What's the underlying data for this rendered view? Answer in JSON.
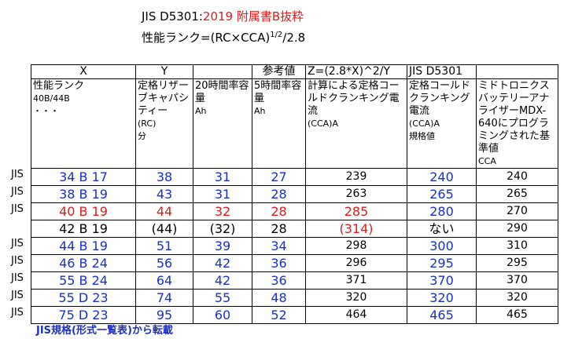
{
  "title": {
    "line1_prefix": "JIS D5301:",
    "line1_red": "2019 附属書B抜粋",
    "line2_prefix": "性能ランク=(RC×CCA)",
    "line2_sup": "1/2",
    "line2_suffix": "/2.8"
  },
  "headers": [
    "X",
    "Y",
    "",
    "参考値",
    "Z=(2.8*X)^2/Y",
    "JIS D5301",
    ""
  ],
  "descriptions": [
    {
      "main": "性能ランク",
      "sub": "40B/44B",
      "extra": "・・・"
    },
    {
      "main": "定格リザーブキャパシティー",
      "sub": "(RC)",
      "extra": "分"
    },
    {
      "main": "20時間率容量",
      "sub": "",
      "extra": "Ah"
    },
    {
      "main": "5時間率容量",
      "sub": "",
      "extra": "Ah"
    },
    {
      "main": "計算による定格コールドクランキング電流",
      "sub": "(CCA)A",
      "extra": ""
    },
    {
      "main": "定格コールドクランキング電流",
      "sub": "(CCA)A",
      "extra": "規格値"
    },
    {
      "main": "ミドトロニクスバッテリーアナライザーMDX-640にプログラミングされた基準値",
      "sub": "",
      "extra": "CCA"
    }
  ],
  "rows": [
    {
      "side": "JIS",
      "rank": "34 B 17",
      "rc": "38",
      "ah20": "31",
      "ah5": "27",
      "calc": "239",
      "jis": "240",
      "midtronics": "240",
      "style": "blue"
    },
    {
      "side": "JIS",
      "rank": "38 B 19",
      "rc": "43",
      "ah20": "31",
      "ah5": "28",
      "calc": "263",
      "jis": "265",
      "midtronics": "265",
      "style": "blue"
    },
    {
      "side": "JIS",
      "rank": "40 B 19",
      "rc": "44",
      "ah20": "32",
      "ah5": "28",
      "calc": "285",
      "jis": "280",
      "midtronics": "270",
      "style": "red"
    },
    {
      "side": "",
      "rank": "42 B 19",
      "rc": "(44)",
      "ah20": "(32)",
      "ah5": "28",
      "calc": "(314)",
      "jis": "ない",
      "midtronics": "290",
      "style": "plain"
    },
    {
      "side": "JIS",
      "rank": "44 B 19",
      "rc": "51",
      "ah20": "39",
      "ah5": "34",
      "calc": "298",
      "jis": "300",
      "midtronics": "310",
      "style": "blue"
    },
    {
      "side": "JIS",
      "rank": "46 B 24",
      "rc": "56",
      "ah20": "42",
      "ah5": "36",
      "calc": "296",
      "jis": "295",
      "midtronics": "295",
      "style": "blue"
    },
    {
      "side": "JIS",
      "rank": "55 B 24",
      "rc": "64",
      "ah20": "42",
      "ah5": "36",
      "calc": "371",
      "jis": "370",
      "midtronics": "370",
      "style": "blue"
    },
    {
      "side": "JIS",
      "rank": "55 D 23",
      "rc": "74",
      "ah20": "55",
      "ah5": "48",
      "calc": "320",
      "jis": "320",
      "midtronics": "320",
      "style": "blue"
    },
    {
      "side": "JIS",
      "rank": "75 D 23",
      "rc": "95",
      "ah20": "60",
      "ah5": "52",
      "calc": "464",
      "jis": "465",
      "midtronics": "465",
      "style": "blue"
    }
  ],
  "footer": "JIS規格(形式一覧表)から転載",
  "colors": {
    "red": "#e01a1a",
    "blue": "#1a2fc8"
  }
}
